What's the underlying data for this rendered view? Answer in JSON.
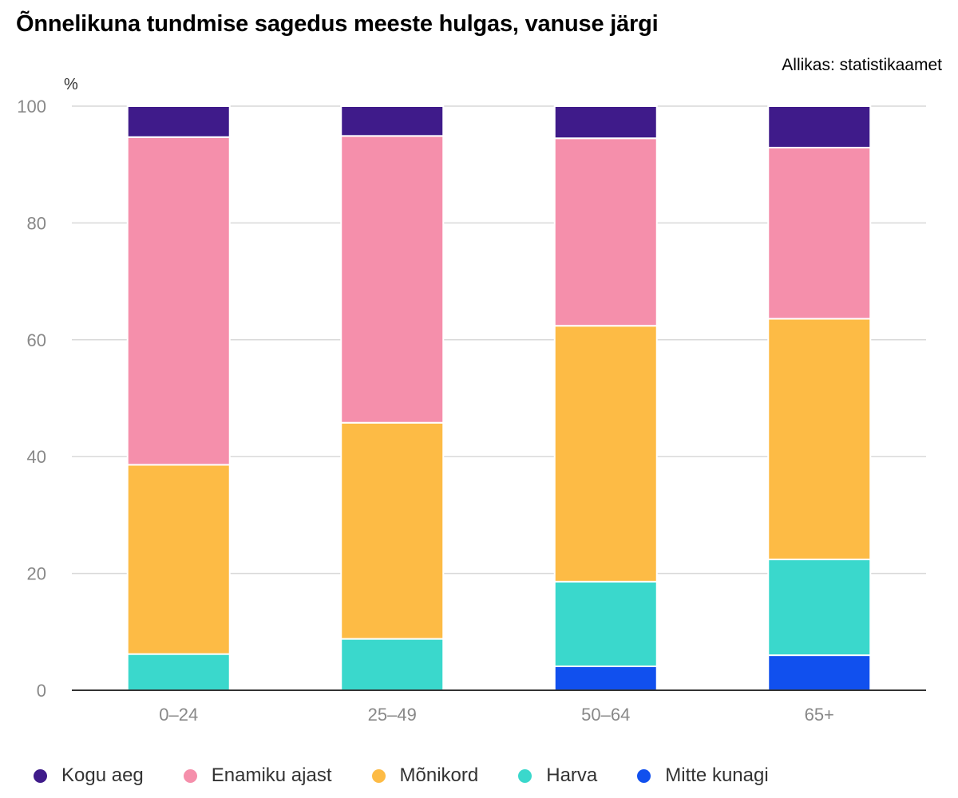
{
  "header": {
    "title": "Õnnelikuna tundmise sagedus meeste hulgas, vanuse järgi",
    "source": "Allikas: statistikaamet"
  },
  "chart_data": {
    "type": "bar",
    "stacked": true,
    "title": "Õnnelikuna tundmise sagedus meeste hulgas, vanuse järgi",
    "ylabel": "%",
    "xlabel": "",
    "ylim": [
      0,
      100
    ],
    "yticks": [
      0,
      20,
      40,
      60,
      80,
      100
    ],
    "grid": true,
    "legend_position": "bottom",
    "categories": [
      "0–24",
      "25–49",
      "50–64",
      "65+"
    ],
    "series": [
      {
        "name": "Mitte kunagi",
        "color": "#1150ee",
        "values": [
          0,
          0,
          4.1,
          6.0
        ]
      },
      {
        "name": "Harva",
        "color": "#3ad8cc",
        "values": [
          6.2,
          8.8,
          14.5,
          16.4
        ]
      },
      {
        "name": "Mõnikord",
        "color": "#fdbb45",
        "values": [
          32.4,
          37.0,
          43.8,
          41.2
        ]
      },
      {
        "name": "Enamiku ajast",
        "color": "#f58fab",
        "values": [
          56.1,
          49.1,
          32.1,
          29.3
        ]
      },
      {
        "name": "Kogu aeg",
        "color": "#3f1b8a",
        "values": [
          5.3,
          5.1,
          5.5,
          7.1
        ]
      }
    ],
    "legend_order": [
      "Kogu aeg",
      "Enamiku ajast",
      "Mõnikord",
      "Harva",
      "Mitte kunagi"
    ]
  }
}
